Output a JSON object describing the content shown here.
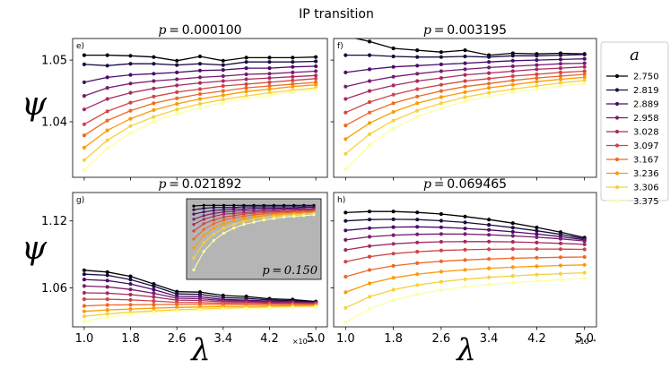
{
  "figure": {
    "suptitle": "IP transition",
    "ylabel": "ψ",
    "xlabel": "λ",
    "x_offset_text": "×10⁻⁴"
  },
  "legend": {
    "title": "a",
    "placement": "outside-right",
    "entries": [
      "2.750",
      "2.819",
      "2.889",
      "2.958",
      "3.028",
      "3.097",
      "3.167",
      "3.236",
      "3.306",
      "3.375"
    ],
    "colors": [
      "#000004",
      "#1b0c41",
      "#4a0c6b",
      "#781c6d",
      "#a52c60",
      "#cf4446",
      "#ed6925",
      "#fb9b06",
      "#f7d13d",
      "#fcffa4"
    ]
  },
  "chart_data": [
    {
      "type": "line",
      "panel_label": "e)",
      "title_prefix": "p",
      "title_value": "0.000100",
      "x": [
        1.0,
        1.4,
        1.8,
        2.2,
        2.6,
        3.0,
        3.4,
        3.8,
        4.2,
        4.6,
        5.0
      ],
      "xticks": [
        "1.0",
        "1.8",
        "2.6",
        "3.4",
        "4.2",
        "5.0"
      ],
      "yticks": [
        "1.04",
        "1.05"
      ],
      "ylim": [
        1.031,
        1.0535
      ],
      "series": [
        {
          "name": "2.750",
          "values": [
            1.0508,
            1.0508,
            1.0507,
            1.0505,
            1.0499,
            1.0506,
            1.0499,
            1.0504,
            1.0504,
            1.0504,
            1.0505
          ]
        },
        {
          "name": "2.819",
          "values": [
            1.0493,
            1.0491,
            1.0494,
            1.0494,
            1.0492,
            1.0494,
            1.0492,
            1.0497,
            1.0497,
            1.0497,
            1.0498
          ]
        },
        {
          "name": "2.889",
          "values": [
            1.0464,
            1.0472,
            1.0476,
            1.0478,
            1.048,
            1.0483,
            1.0484,
            1.0487,
            1.0487,
            1.0489,
            1.049
          ]
        },
        {
          "name": "2.958",
          "values": [
            1.0442,
            1.0455,
            1.0462,
            1.0466,
            1.0469,
            1.0472,
            1.0474,
            1.0477,
            1.0478,
            1.048,
            1.0482
          ]
        },
        {
          "name": "3.028",
          "values": [
            1.042,
            1.0437,
            1.0447,
            1.0454,
            1.0459,
            1.0463,
            1.0466,
            1.0469,
            1.0471,
            1.0473,
            1.0475
          ]
        },
        {
          "name": "3.097",
          "values": [
            1.0396,
            1.0417,
            1.0431,
            1.0441,
            1.0448,
            1.0453,
            1.0458,
            1.0461,
            1.0464,
            1.0467,
            1.047
          ]
        },
        {
          "name": "3.167",
          "values": [
            1.0378,
            1.0402,
            1.0418,
            1.043,
            1.0438,
            1.0445,
            1.045,
            1.0455,
            1.0458,
            1.0461,
            1.0464
          ]
        },
        {
          "name": "3.236",
          "values": [
            1.0358,
            1.0386,
            1.0405,
            1.0419,
            1.0429,
            1.0437,
            1.0443,
            1.0449,
            1.0453,
            1.0457,
            1.046
          ]
        },
        {
          "name": "3.306",
          "values": [
            1.0338,
            1.037,
            1.0393,
            1.0408,
            1.042,
            1.0429,
            1.0436,
            1.0442,
            1.0447,
            1.0451,
            1.0455
          ]
        },
        {
          "name": "3.375",
          "values": [
            1.0322,
            1.0357,
            1.0382,
            1.04,
            1.0413,
            1.0423,
            1.0431,
            1.0438,
            1.0443,
            1.0448,
            1.0452
          ]
        }
      ]
    },
    {
      "type": "line",
      "panel_label": "f)",
      "title_prefix": "p",
      "title_value": "0.003195",
      "x": [
        1.0,
        1.4,
        1.8,
        2.2,
        2.6,
        3.0,
        3.4,
        3.8,
        4.2,
        4.6,
        5.0
      ],
      "xticks": [
        "1.0",
        "1.8",
        "2.6",
        "3.4",
        "4.2",
        "5.0"
      ],
      "yticks": [
        "1.04",
        "1.05"
      ],
      "ylim": [
        1.031,
        1.0535
      ],
      "series": [
        {
          "name": "2.750",
          "values": [
            1.0539,
            1.053,
            1.0519,
            1.0516,
            1.0513,
            1.0516,
            1.0508,
            1.0511,
            1.051,
            1.0511,
            1.051
          ]
        },
        {
          "name": "2.819",
          "values": [
            1.0508,
            1.0508,
            1.0506,
            1.0505,
            1.0505,
            1.0506,
            1.0505,
            1.0507,
            1.0507,
            1.0508,
            1.0509
          ]
        },
        {
          "name": "2.889",
          "values": [
            1.048,
            1.0485,
            1.0489,
            1.0491,
            1.0493,
            1.0495,
            1.0497,
            1.0499,
            1.05,
            1.0501,
            1.0502
          ]
        },
        {
          "name": "2.958",
          "values": [
            1.0457,
            1.0466,
            1.0473,
            1.0478,
            1.0482,
            1.0485,
            1.0488,
            1.049,
            1.0492,
            1.0494,
            1.0495
          ]
        },
        {
          "name": "3.028",
          "values": [
            1.0437,
            1.045,
            1.0459,
            1.0466,
            1.0471,
            1.0476,
            1.0479,
            1.0482,
            1.0485,
            1.0487,
            1.0489
          ]
        },
        {
          "name": "3.097",
          "values": [
            1.0415,
            1.0432,
            1.0444,
            1.0453,
            1.046,
            1.0466,
            1.047,
            1.0474,
            1.0477,
            1.048,
            1.0482
          ]
        },
        {
          "name": "3.167",
          "values": [
            1.0394,
            1.0415,
            1.043,
            1.0441,
            1.045,
            1.0457,
            1.0462,
            1.0467,
            1.0471,
            1.0474,
            1.0477
          ]
        },
        {
          "name": "3.236",
          "values": [
            1.0372,
            1.0398,
            1.0416,
            1.043,
            1.044,
            1.0448,
            1.0455,
            1.046,
            1.0465,
            1.0469,
            1.0472
          ]
        },
        {
          "name": "3.306",
          "values": [
            1.0348,
            1.038,
            1.0402,
            1.0418,
            1.043,
            1.044,
            1.0447,
            1.0453,
            1.0458,
            1.0463,
            1.0467
          ]
        },
        {
          "name": "3.375",
          "values": [
            1.0323,
            1.0362,
            1.0389,
            1.0408,
            1.0422,
            1.0433,
            1.0441,
            1.0448,
            1.0453,
            1.0458,
            1.0462
          ]
        }
      ]
    },
    {
      "type": "line",
      "panel_label": "g)",
      "title_prefix": "p",
      "title_value": "0.021892",
      "x": [
        1.0,
        1.4,
        1.8,
        2.2,
        2.6,
        3.0,
        3.4,
        3.8,
        4.2,
        4.6,
        5.0
      ],
      "xticks": [
        "1.0",
        "1.8",
        "2.6",
        "3.4",
        "4.2",
        "5.0"
      ],
      "yticks": [
        "1.06",
        "1.12"
      ],
      "ylim": [
        1.025,
        1.1455
      ],
      "series": [
        {
          "name": "2.750",
          "values": [
            1.0758,
            1.0742,
            1.0703,
            1.0635,
            1.0566,
            1.0562,
            1.0531,
            1.0522,
            1.0502,
            1.0495,
            1.0477
          ]
        },
        {
          "name": "2.819",
          "values": [
            1.0722,
            1.0713,
            1.0674,
            1.0615,
            1.0546,
            1.0542,
            1.0512,
            1.0506,
            1.0492,
            1.0484,
            1.0473
          ]
        },
        {
          "name": "2.889",
          "values": [
            1.0675,
            1.0665,
            1.0635,
            1.0584,
            1.0524,
            1.052,
            1.0496,
            1.049,
            1.0481,
            1.0475,
            1.0469
          ]
        },
        {
          "name": "2.958",
          "values": [
            1.0616,
            1.0608,
            1.0586,
            1.0551,
            1.0507,
            1.0503,
            1.0485,
            1.0481,
            1.0474,
            1.047,
            1.0464
          ]
        },
        {
          "name": "3.028",
          "values": [
            1.0555,
            1.0552,
            1.0539,
            1.0518,
            1.049,
            1.0487,
            1.0475,
            1.0472,
            1.0467,
            1.0464,
            1.046
          ]
        },
        {
          "name": "3.097",
          "values": [
            1.0498,
            1.0498,
            1.0492,
            1.0482,
            1.047,
            1.0468,
            1.0462,
            1.046,
            1.0458,
            1.0457,
            1.0455
          ]
        },
        {
          "name": "3.167",
          "values": [
            1.0438,
            1.0446,
            1.0448,
            1.045,
            1.0451,
            1.0452,
            1.0451,
            1.0451,
            1.0451,
            1.045,
            1.0449
          ]
        },
        {
          "name": "3.236",
          "values": [
            1.0389,
            1.0402,
            1.041,
            1.0418,
            1.0424,
            1.0428,
            1.0432,
            1.0434,
            1.0437,
            1.0439,
            1.044
          ]
        },
        {
          "name": "3.306",
          "values": [
            1.0345,
            1.0366,
            1.0381,
            1.0393,
            1.0403,
            1.0411,
            1.0418,
            1.0423,
            1.0427,
            1.0431,
            1.0434
          ]
        },
        {
          "name": "3.375",
          "values": [
            1.03,
            1.0338,
            1.0362,
            1.0379,
            1.0392,
            1.0401,
            1.0408,
            1.0414,
            1.0419,
            1.0423,
            1.0427
          ]
        }
      ],
      "inset": {
        "label_prefix": "p",
        "label_value": "0.150",
        "background": "#b5b5b5",
        "ylim": [
          0.0,
          1.0
        ],
        "series": [
          {
            "name": "2.750",
            "values": [
              0.95,
              0.96,
              0.96,
              0.96,
              0.96,
              0.96,
              0.96,
              0.96,
              0.96,
              0.96,
              0.96,
              0.96,
              0.96
            ]
          },
          {
            "name": "2.819",
            "values": [
              0.9,
              0.92,
              0.93,
              0.93,
              0.93,
              0.94,
              0.94,
              0.94,
              0.94,
              0.94,
              0.94,
              0.94,
              0.94
            ]
          },
          {
            "name": "2.889",
            "values": [
              0.84,
              0.87,
              0.89,
              0.9,
              0.91,
              0.91,
              0.92,
              0.92,
              0.92,
              0.92,
              0.92,
              0.93,
              0.93
            ]
          },
          {
            "name": "2.958",
            "values": [
              0.77,
              0.82,
              0.85,
              0.87,
              0.88,
              0.89,
              0.89,
              0.9,
              0.9,
              0.91,
              0.91,
              0.91,
              0.91
            ]
          },
          {
            "name": "3.028",
            "values": [
              0.7,
              0.77,
              0.81,
              0.84,
              0.85,
              0.86,
              0.87,
              0.88,
              0.88,
              0.89,
              0.89,
              0.9,
              0.9
            ]
          },
          {
            "name": "3.097",
            "values": [
              0.61,
              0.71,
              0.76,
              0.8,
              0.82,
              0.84,
              0.85,
              0.86,
              0.87,
              0.87,
              0.88,
              0.88,
              0.89
            ]
          },
          {
            "name": "3.167",
            "values": [
              0.5,
              0.63,
              0.71,
              0.76,
              0.79,
              0.81,
              0.83,
              0.84,
              0.85,
              0.86,
              0.86,
              0.87,
              0.87
            ]
          },
          {
            "name": "3.236",
            "values": [
              0.38,
              0.55,
              0.65,
              0.71,
              0.75,
              0.78,
              0.8,
              0.82,
              0.83,
              0.84,
              0.85,
              0.85,
              0.86
            ]
          },
          {
            "name": "3.306",
            "values": [
              0.24,
              0.45,
              0.57,
              0.65,
              0.7,
              0.74,
              0.77,
              0.79,
              0.81,
              0.82,
              0.83,
              0.84,
              0.85
            ]
          },
          {
            "name": "3.375",
            "values": [
              0.08,
              0.33,
              0.48,
              0.58,
              0.65,
              0.7,
              0.73,
              0.76,
              0.78,
              0.8,
              0.81,
              0.82,
              0.83
            ]
          }
        ]
      }
    },
    {
      "type": "line",
      "panel_label": "h)",
      "title_prefix": "p",
      "title_value": "0.069465",
      "x": [
        1.0,
        1.4,
        1.8,
        2.2,
        2.6,
        3.0,
        3.4,
        3.8,
        4.2,
        4.6,
        5.0
      ],
      "xticks": [
        "1.0",
        "1.8",
        "2.6",
        "3.4",
        "4.2",
        "5.0"
      ],
      "yticks": [
        "1.06",
        "1.12"
      ],
      "ylim": [
        1.025,
        1.1455
      ],
      "series": [
        {
          "name": "2.750",
          "values": [
            1.1275,
            1.1285,
            1.1285,
            1.1277,
            1.1262,
            1.124,
            1.1212,
            1.118,
            1.1142,
            1.11,
            1.105
          ]
        },
        {
          "name": "2.819",
          "values": [
            1.12,
            1.1212,
            1.1215,
            1.1212,
            1.1202,
            1.1187,
            1.1165,
            1.114,
            1.1112,
            1.108,
            1.104
          ]
        },
        {
          "name": "2.889",
          "values": [
            1.1115,
            1.1135,
            1.1145,
            1.1147,
            1.1143,
            1.1133,
            1.112,
            1.1102,
            1.1082,
            1.106,
            1.103
          ]
        },
        {
          "name": "2.958",
          "values": [
            1.103,
            1.1058,
            1.1073,
            1.108,
            1.1083,
            1.1082,
            1.1076,
            1.1066,
            1.1054,
            1.104,
            1.102
          ]
        },
        {
          "name": "3.028",
          "values": [
            1.094,
            1.0975,
            1.0995,
            1.1007,
            1.1013,
            1.1015,
            1.1015,
            1.1012,
            1.1006,
            1.0999,
            1.099
          ]
        },
        {
          "name": "3.097",
          "values": [
            1.0835,
            1.088,
            1.0907,
            1.0924,
            1.0935,
            1.0942,
            1.0946,
            1.0948,
            1.0948,
            1.0947,
            1.0945
          ]
        },
        {
          "name": "3.167",
          "values": [
            1.07,
            1.076,
            1.0797,
            1.0821,
            1.0838,
            1.085,
            1.0859,
            1.0865,
            1.087,
            1.0874,
            1.0877
          ]
        },
        {
          "name": "3.236",
          "values": [
            1.056,
            1.064,
            1.069,
            1.0722,
            1.0745,
            1.0762,
            1.0775,
            1.0785,
            1.0793,
            1.08,
            1.0806
          ]
        },
        {
          "name": "3.306",
          "values": [
            1.042,
            1.052,
            1.0583,
            1.0625,
            1.0655,
            1.0677,
            1.0694,
            1.0707,
            1.0718,
            1.0727,
            1.0735
          ]
        },
        {
          "name": "3.375",
          "values": [
            1.029,
            1.0412,
            1.049,
            1.0542,
            1.058,
            1.0608,
            1.063,
            1.0647,
            1.0661,
            1.0673,
            1.0683
          ]
        }
      ]
    }
  ]
}
